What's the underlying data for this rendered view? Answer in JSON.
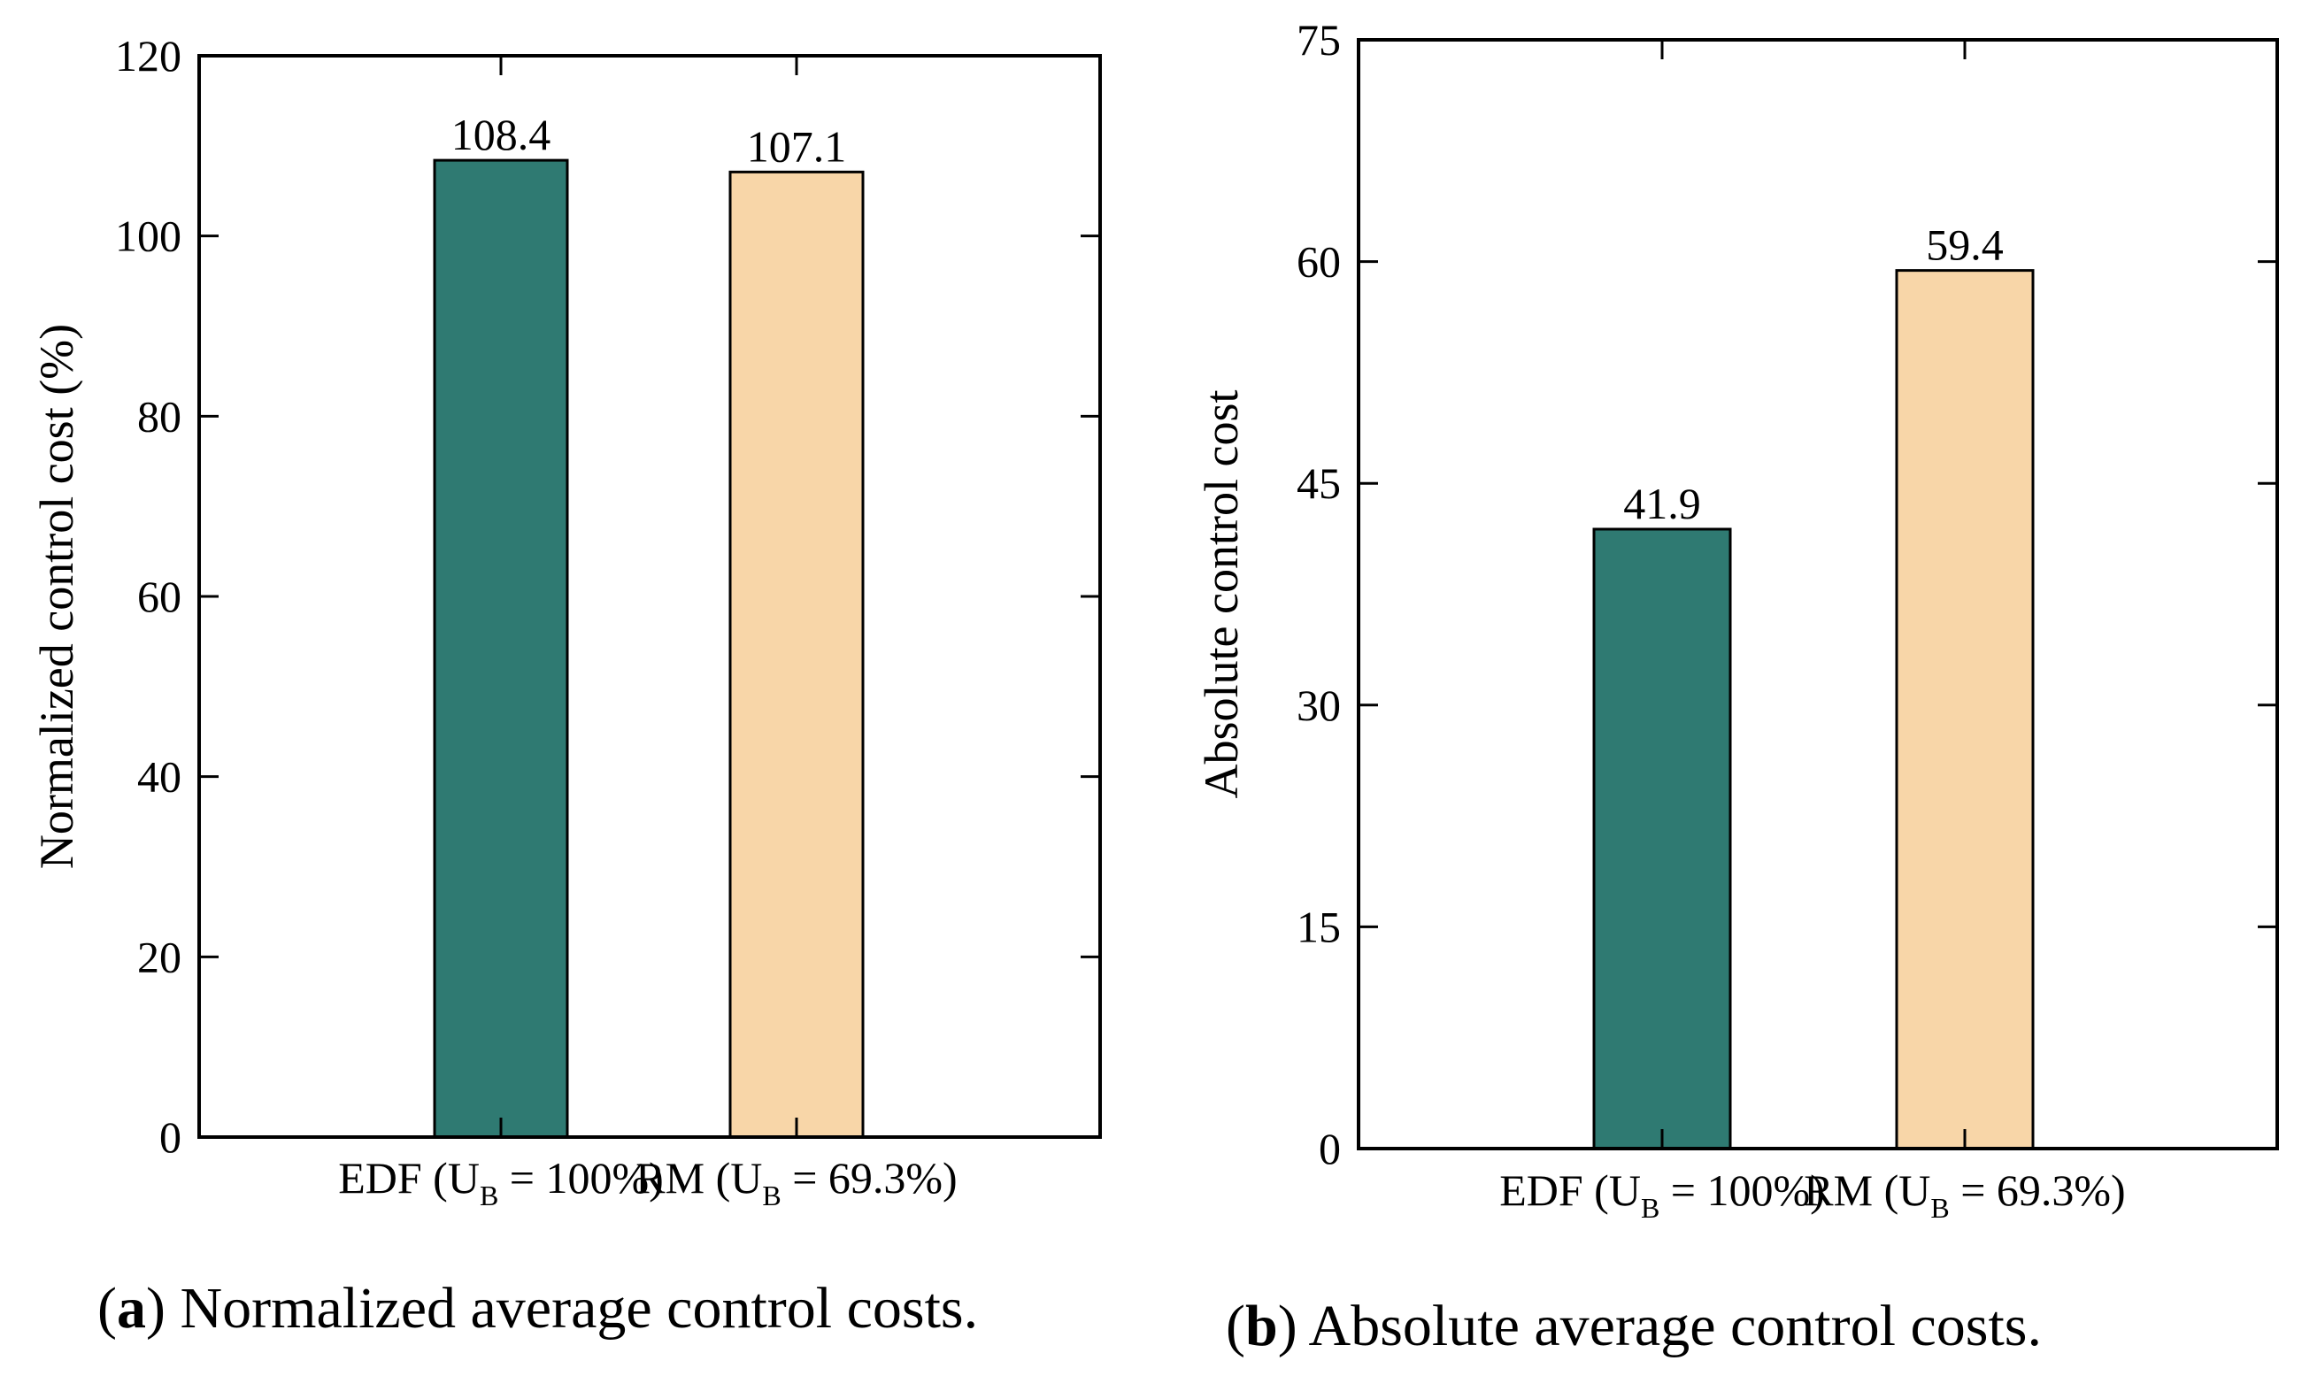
{
  "chart_data": [
    {
      "type": "bar",
      "panel_letter": "a",
      "caption": "Normalized average control costs.",
      "categories": [
        {
          "prefix": "EDF (U",
          "sub": "B",
          "suffix": " = 100%)"
        },
        {
          "prefix": "RM (U",
          "sub": "B",
          "suffix": " = 69.3%)"
        }
      ],
      "values": [
        108.4,
        107.1
      ],
      "value_labels": [
        "108.4",
        "107.1"
      ],
      "colors": [
        "#2f7a72",
        "#f8d6a8"
      ],
      "ylabel": "Normalized control cost (%)",
      "ylim": [
        0,
        120
      ],
      "yticks": [
        0,
        20,
        40,
        60,
        80,
        100,
        120
      ],
      "grid": false
    },
    {
      "type": "bar",
      "panel_letter": "b",
      "caption": "Absolute average control costs.",
      "categories": [
        {
          "prefix": "EDF (U",
          "sub": "B",
          "suffix": " = 100%)"
        },
        {
          "prefix": "RM (U",
          "sub": "B",
          "suffix": " = 69.3%)"
        }
      ],
      "values": [
        41.9,
        59.4
      ],
      "value_labels": [
        "41.9",
        "59.4"
      ],
      "colors": [
        "#2f7a72",
        "#f8d6a8"
      ],
      "ylabel": "Absolute control cost",
      "ylim": [
        0,
        75
      ],
      "yticks": [
        0,
        15,
        30,
        45,
        60,
        75
      ],
      "grid": false
    }
  ]
}
